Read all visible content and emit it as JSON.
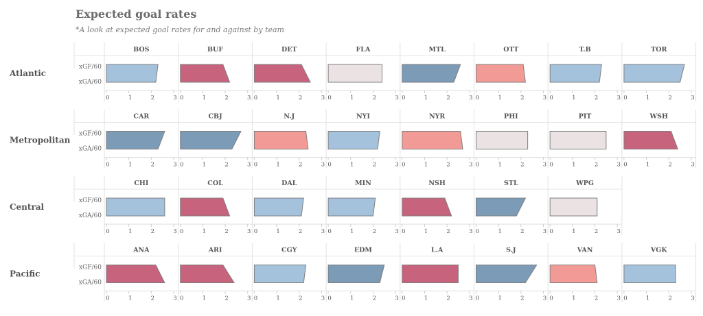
{
  "header": {
    "title": "Expected goal rates",
    "subtitle": "*A look at expected goal rates for and against by team"
  },
  "chart_data": {
    "type": "bar",
    "xlim": [
      0,
      3
    ],
    "ticks": [
      "0",
      "1",
      "2",
      "3"
    ],
    "row_labels": [
      "xGF/60",
      "xGA/60"
    ],
    "colors": {
      "blue_light": "#a4c2dc",
      "blue_dark": "#7b9bb6",
      "red_dark": "#c7637d",
      "red_light": "#f29b96",
      "gray": "#ebe3e3"
    },
    "divisions": [
      {
        "name": "Atlantic",
        "teams": [
          {
            "team": "BOS",
            "xGF": 2.3,
            "xGA": 2.2,
            "color": "blue_light"
          },
          {
            "team": "BUF",
            "xGF": 1.9,
            "xGA": 2.2,
            "color": "red_dark"
          },
          {
            "team": "DET",
            "xGF": 2.1,
            "xGA": 2.5,
            "color": "red_dark"
          },
          {
            "team": "FLA",
            "xGF": 2.4,
            "xGA": 2.4,
            "color": "gray"
          },
          {
            "team": "MTL",
            "xGF": 2.6,
            "xGA": 2.3,
            "color": "blue_dark"
          },
          {
            "team": "OTT",
            "xGF": 2.1,
            "xGA": 2.2,
            "color": "red_light"
          },
          {
            "team": "T.B",
            "xGF": 2.3,
            "xGA": 2.2,
            "color": "blue_light"
          },
          {
            "team": "TOR",
            "xGF": 2.7,
            "xGA": 2.5,
            "color": "blue_light"
          }
        ]
      },
      {
        "name": "Metropolitan",
        "teams": [
          {
            "team": "CAR",
            "xGF": 2.6,
            "xGA": 2.3,
            "color": "blue_dark"
          },
          {
            "team": "CBJ",
            "xGF": 2.7,
            "xGA": 2.3,
            "color": "blue_dark"
          },
          {
            "team": "N.J",
            "xGF": 2.3,
            "xGA": 2.4,
            "color": "red_light"
          },
          {
            "team": "NYI",
            "xGF": 2.3,
            "xGA": 2.2,
            "color": "blue_light"
          },
          {
            "team": "NYR",
            "xGF": 2.6,
            "xGA": 2.7,
            "color": "red_light"
          },
          {
            "team": "PHI",
            "xGF": 2.3,
            "xGA": 2.3,
            "color": "gray"
          },
          {
            "team": "PIT",
            "xGF": 2.5,
            "xGA": 2.5,
            "color": "gray"
          },
          {
            "team": "WSH",
            "xGF": 2.1,
            "xGA": 2.4,
            "color": "red_dark"
          }
        ]
      },
      {
        "name": "Central",
        "teams": [
          {
            "team": "CHI",
            "xGF": 2.6,
            "xGA": 2.6,
            "color": "blue_light"
          },
          {
            "team": "COL",
            "xGF": 1.9,
            "xGA": 2.2,
            "color": "red_dark"
          },
          {
            "team": "DAL",
            "xGF": 2.2,
            "xGA": 2.1,
            "color": "blue_light"
          },
          {
            "team": "MIN",
            "xGF": 2.1,
            "xGA": 2.0,
            "color": "blue_light"
          },
          {
            "team": "NSH",
            "xGF": 1.9,
            "xGA": 2.2,
            "color": "red_dark"
          },
          {
            "team": "STL",
            "xGF": 2.2,
            "xGA": 1.8,
            "color": "blue_dark"
          },
          {
            "team": "WPG",
            "xGF": 2.1,
            "xGA": 2.1,
            "color": "gray"
          }
        ]
      },
      {
        "name": "Pacific",
        "teams": [
          {
            "team": "ANA",
            "xGF": 2.2,
            "xGA": 2.6,
            "color": "red_dark"
          },
          {
            "team": "ARI",
            "xGF": 1.9,
            "xGA": 2.4,
            "color": "red_dark"
          },
          {
            "team": "CGY",
            "xGF": 2.3,
            "xGA": 2.2,
            "color": "blue_light"
          },
          {
            "team": "EDM",
            "xGF": 2.5,
            "xGA": 2.3,
            "color": "blue_dark"
          },
          {
            "team": "L.A",
            "xGF": 2.5,
            "xGA": 2.5,
            "color": "red_dark"
          },
          {
            "team": "S.J",
            "xGF": 2.7,
            "xGA": 2.2,
            "color": "blue_dark"
          },
          {
            "team": "VAN",
            "xGF": 2.0,
            "xGA": 2.1,
            "color": "red_light"
          },
          {
            "team": "VGK",
            "xGF": 2.3,
            "xGA": 2.3,
            "color": "blue_light"
          }
        ]
      }
    ]
  }
}
